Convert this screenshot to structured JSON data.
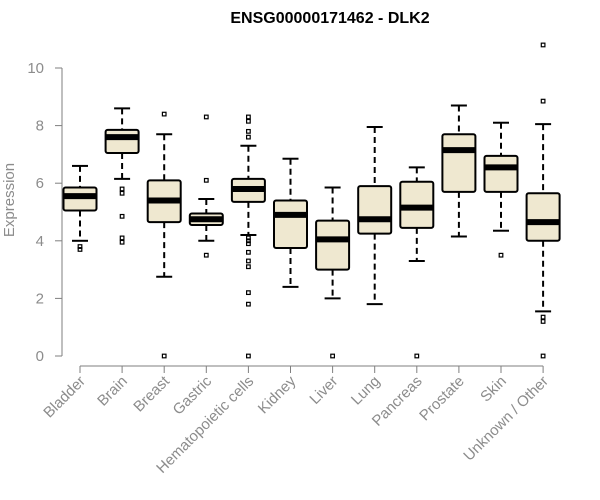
{
  "chart_data": {
    "type": "boxplot",
    "title": "ENSG00000171462 - DLK2",
    "xlabel": "",
    "ylabel": "Expression",
    "ylim": [
      0,
      10.8
    ],
    "yticks": [
      0,
      2,
      4,
      6,
      8,
      10
    ],
    "grid": false,
    "box_color": "#efe8d0",
    "categories": [
      "Bladder",
      "Brain",
      "Breast",
      "Gastric",
      "Hematopoietic cells",
      "Kidney",
      "Liver",
      "Lung",
      "Pancreas",
      "Prostate",
      "Skin",
      "Unknown / Other"
    ],
    "boxes": [
      {
        "min": 4.0,
        "q1": 5.05,
        "median": 5.55,
        "q3": 5.85,
        "max": 6.6,
        "outliers": [
          3.8,
          3.7
        ]
      },
      {
        "min": 6.15,
        "q1": 7.05,
        "median": 7.6,
        "q3": 7.85,
        "max": 8.6,
        "outliers": [
          5.8,
          5.65,
          4.85,
          4.1,
          3.95
        ]
      },
      {
        "min": 2.75,
        "q1": 4.65,
        "median": 5.4,
        "q3": 6.1,
        "max": 7.7,
        "outliers": [
          8.4,
          0.0
        ]
      },
      {
        "min": 4.0,
        "q1": 4.55,
        "median": 4.75,
        "q3": 4.95,
        "max": 5.45,
        "outliers": [
          8.3,
          6.1,
          3.5
        ]
      },
      {
        "min": 4.2,
        "q1": 5.35,
        "median": 5.8,
        "q3": 6.15,
        "max": 7.3,
        "outliers": [
          8.3,
          8.15,
          7.8,
          7.6,
          4.1,
          4.0,
          3.9,
          3.6,
          3.3,
          3.1,
          2.2,
          1.8,
          0.0
        ]
      },
      {
        "min": 2.4,
        "q1": 3.75,
        "median": 4.9,
        "q3": 5.4,
        "max": 6.85,
        "outliers": []
      },
      {
        "min": 2.0,
        "q1": 3.0,
        "median": 4.05,
        "q3": 4.7,
        "max": 5.85,
        "outliers": [
          0.0
        ]
      },
      {
        "min": 1.8,
        "q1": 4.25,
        "median": 4.75,
        "q3": 5.9,
        "max": 7.95,
        "outliers": []
      },
      {
        "min": 3.3,
        "q1": 4.45,
        "median": 5.15,
        "q3": 6.05,
        "max": 6.55,
        "outliers": [
          0.0
        ]
      },
      {
        "min": 4.15,
        "q1": 5.7,
        "median": 7.15,
        "q3": 7.7,
        "max": 8.7,
        "outliers": []
      },
      {
        "min": 4.35,
        "q1": 5.7,
        "median": 6.55,
        "q3": 6.95,
        "max": 8.1,
        "outliers": [
          3.5
        ]
      },
      {
        "min": 1.55,
        "q1": 4.0,
        "median": 4.65,
        "q3": 5.65,
        "max": 8.05,
        "outliers": [
          10.8,
          8.85,
          1.35,
          1.2,
          0.0
        ]
      }
    ]
  }
}
